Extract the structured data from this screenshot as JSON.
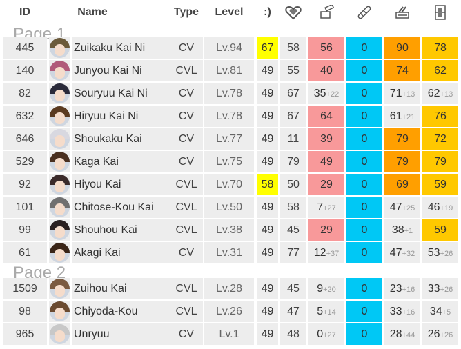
{
  "headers": {
    "id": "ID",
    "name": "Name",
    "type": "Type",
    "level": "Level",
    "morale": ":)"
  },
  "header_icons": [
    "hp-heart-icon",
    "firepower-cannon-icon",
    "torpedo-icon",
    "anti-air-icon",
    "armor-icon"
  ],
  "colors": {
    "row_bg": "#ededed",
    "yellow": "#ffff00",
    "salmon": "#f8999a",
    "cyan": "#00c8f5",
    "orange": "#ff9f00",
    "gold": "#ffc800"
  },
  "pages": [
    {
      "label": "Page 1",
      "rows": [
        {
          "id": "445",
          "name": "Zuikaku Kai Ni",
          "type": "CV",
          "level": "Lv.94",
          "morale": "67",
          "morale_color": "yellow",
          "hp": "58",
          "fp": "56",
          "fp_plus": "",
          "fp_color": "salmon",
          "tp": "0",
          "tp_plus": "",
          "tp_color": "cyan",
          "aa": "90",
          "aa_plus": "",
          "aa_color": "orange",
          "ar": "78",
          "ar_plus": "",
          "ar_color": "gold",
          "hair": "#6b5a3a"
        },
        {
          "id": "140",
          "name": "Junyou Kai Ni",
          "type": "CVL",
          "level": "Lv.81",
          "morale": "49",
          "morale_color": "",
          "hp": "55",
          "fp": "40",
          "fp_plus": "",
          "fp_color": "salmon",
          "tp": "0",
          "tp_plus": "",
          "tp_color": "cyan",
          "aa": "74",
          "aa_plus": "",
          "aa_color": "orange",
          "ar": "62",
          "ar_plus": "",
          "ar_color": "gold",
          "hair": "#b05a7a"
        },
        {
          "id": "82",
          "name": "Souryuu Kai Ni",
          "type": "CV",
          "level": "Lv.78",
          "morale": "49",
          "morale_color": "",
          "hp": "67",
          "fp": "35",
          "fp_plus": "+22",
          "fp_color": "",
          "tp": "0",
          "tp_plus": "",
          "tp_color": "cyan",
          "aa": "71",
          "aa_plus": "+13",
          "aa_color": "",
          "ar": "62",
          "ar_plus": "+13",
          "ar_color": "",
          "hair": "#2a2a3a"
        },
        {
          "id": "632",
          "name": "Hiryuu Kai Ni",
          "type": "CV",
          "level": "Lv.78",
          "morale": "49",
          "morale_color": "",
          "hp": "67",
          "fp": "64",
          "fp_plus": "",
          "fp_color": "salmon",
          "tp": "0",
          "tp_plus": "",
          "tp_color": "cyan",
          "aa": "61",
          "aa_plus": "+21",
          "aa_color": "",
          "ar": "76",
          "ar_plus": "",
          "ar_color": "gold",
          "hair": "#5a3a20"
        },
        {
          "id": "646",
          "name": "Shoukaku Kai",
          "type": "CV",
          "level": "Lv.77",
          "morale": "49",
          "morale_color": "",
          "hp": "11",
          "fp": "39",
          "fp_plus": "",
          "fp_color": "salmon",
          "tp": "0",
          "tp_plus": "",
          "tp_color": "cyan",
          "aa": "79",
          "aa_plus": "",
          "aa_color": "orange",
          "ar": "72",
          "ar_plus": "",
          "ar_color": "gold",
          "hair": "#d8d8e0"
        },
        {
          "id": "529",
          "name": "Kaga Kai",
          "type": "CV",
          "level": "Lv.75",
          "morale": "49",
          "morale_color": "",
          "hp": "79",
          "fp": "49",
          "fp_plus": "",
          "fp_color": "salmon",
          "tp": "0",
          "tp_plus": "",
          "tp_color": "cyan",
          "aa": "79",
          "aa_plus": "",
          "aa_color": "orange",
          "ar": "79",
          "ar_plus": "",
          "ar_color": "gold",
          "hair": "#4a3020"
        },
        {
          "id": "92",
          "name": "Hiyou Kai",
          "type": "CVL",
          "level": "Lv.70",
          "morale": "58",
          "morale_color": "yellow",
          "hp": "50",
          "fp": "29",
          "fp_plus": "",
          "fp_color": "salmon",
          "tp": "0",
          "tp_plus": "",
          "tp_color": "cyan",
          "aa": "69",
          "aa_plus": "",
          "aa_color": "orange",
          "ar": "59",
          "ar_plus": "",
          "ar_color": "gold",
          "hair": "#3a2a2a"
        },
        {
          "id": "101",
          "name": "Chitose-Kou Kai",
          "type": "CVL",
          "level": "Lv.50",
          "morale": "49",
          "morale_color": "",
          "hp": "58",
          "fp": "7",
          "fp_plus": "+27",
          "fp_color": "",
          "tp": "0",
          "tp_plus": "",
          "tp_color": "cyan",
          "aa": "47",
          "aa_plus": "+25",
          "aa_color": "",
          "ar": "46",
          "ar_plus": "+19",
          "ar_color": "",
          "hair": "#707070"
        },
        {
          "id": "99",
          "name": "Shouhou Kai",
          "type": "CVL",
          "level": "Lv.38",
          "morale": "49",
          "morale_color": "",
          "hp": "45",
          "fp": "29",
          "fp_plus": "",
          "fp_color": "salmon",
          "tp": "0",
          "tp_plus": "",
          "tp_color": "cyan",
          "aa": "38",
          "aa_plus": "+1",
          "aa_color": "",
          "ar": "59",
          "ar_plus": "",
          "ar_color": "gold",
          "hair": "#2a2020"
        },
        {
          "id": "61",
          "name": "Akagi Kai",
          "type": "CV",
          "level": "Lv.31",
          "morale": "49",
          "morale_color": "",
          "hp": "77",
          "fp": "12",
          "fp_plus": "+37",
          "fp_color": "",
          "tp": "0",
          "tp_plus": "",
          "tp_color": "cyan",
          "aa": "47",
          "aa_plus": "+32",
          "aa_color": "",
          "ar": "53",
          "ar_plus": "+26",
          "ar_color": "",
          "hair": "#3a2518"
        }
      ]
    },
    {
      "label": "Page 2",
      "rows": [
        {
          "id": "1509",
          "name": "Zuihou Kai",
          "type": "CVL",
          "level": "Lv.28",
          "morale": "49",
          "morale_color": "",
          "hp": "45",
          "fp": "9",
          "fp_plus": "+20",
          "fp_color": "",
          "tp": "0",
          "tp_plus": "",
          "tp_color": "cyan",
          "aa": "23",
          "aa_plus": "+16",
          "aa_color": "",
          "ar": "33",
          "ar_plus": "+26",
          "ar_color": "",
          "hair": "#7a5a40"
        },
        {
          "id": "98",
          "name": "Chiyoda-Kou",
          "type": "CVL",
          "level": "Lv.26",
          "morale": "49",
          "morale_color": "",
          "hp": "47",
          "fp": "5",
          "fp_plus": "+14",
          "fp_color": "",
          "tp": "0",
          "tp_plus": "",
          "tp_color": "cyan",
          "aa": "33",
          "aa_plus": "+16",
          "aa_color": "",
          "ar": "34",
          "ar_plus": "+5",
          "ar_color": "",
          "hair": "#6a4a30"
        },
        {
          "id": "965",
          "name": "Unryuu",
          "type": "CV",
          "level": "Lv.1",
          "morale": "49",
          "morale_color": "",
          "hp": "48",
          "fp": "0",
          "fp_plus": "+27",
          "fp_color": "",
          "tp": "0",
          "tp_plus": "",
          "tp_color": "cyan",
          "aa": "28",
          "aa_plus": "+44",
          "aa_color": "",
          "ar": "26",
          "ar_plus": "+26",
          "ar_color": "",
          "hair": "#c8c8c8"
        }
      ]
    }
  ]
}
